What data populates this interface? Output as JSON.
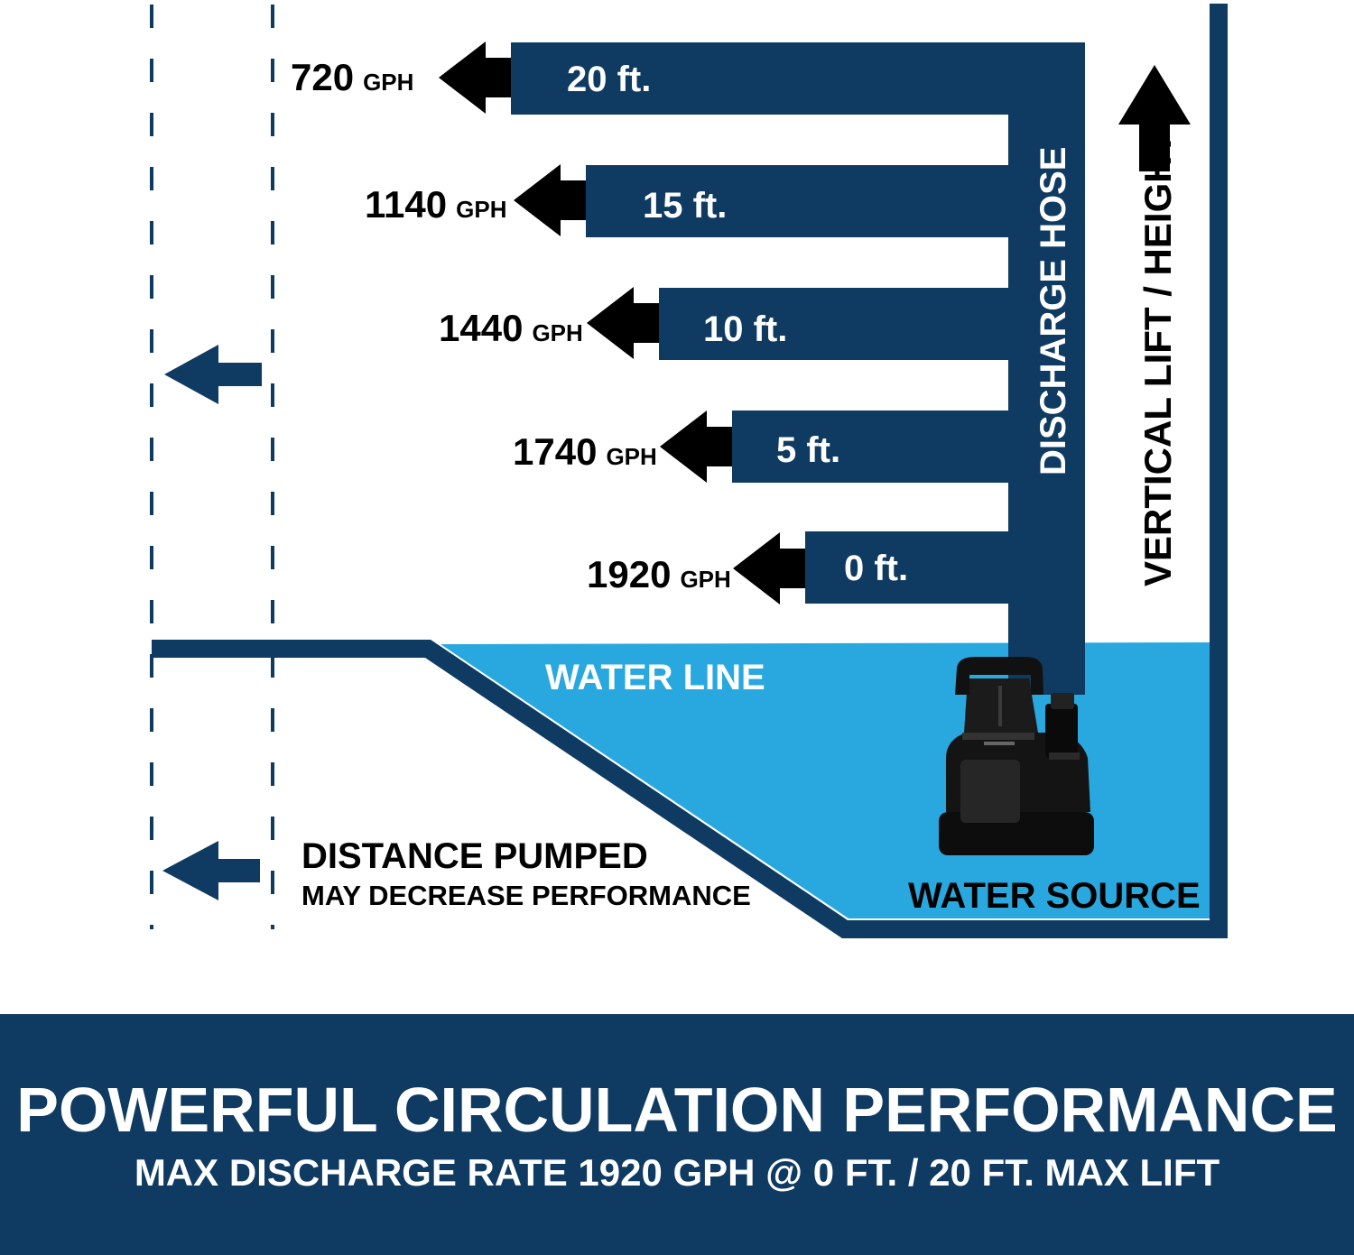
{
  "colors": {
    "navy": "#0f3a61",
    "water": "#29a8e0",
    "arrow": "#000000",
    "white": "#ffffff"
  },
  "lift_levels": [
    {
      "height": "20 ft.",
      "flow_value": "720",
      "flow_unit": "GPH"
    },
    {
      "height": "15 ft.",
      "flow_value": "1140",
      "flow_unit": "GPH"
    },
    {
      "height": "10 ft.",
      "flow_value": "1440",
      "flow_unit": "GPH"
    },
    {
      "height": "5 ft.",
      "flow_value": "1740",
      "flow_unit": "GPH"
    },
    {
      "height": "0 ft.",
      "flow_value": "1920",
      "flow_unit": "GPH"
    }
  ],
  "labels": {
    "discharge_hose": "DISCHARGE HOSE",
    "vertical_lift": "VERTICAL LIFT / HEIGHT",
    "water_line": "WATER LINE",
    "water_source": "WATER SOURCE",
    "distance_title": "DISTANCE PUMPED",
    "distance_sub": "MAY DECREASE PERFORMANCE"
  },
  "banner": {
    "title": "POWERFUL CIRCULATION PERFORMANCE",
    "subtitle": "MAX DISCHARGE RATE 1920 GPH @ 0 FT. / 20 FT. MAX LIFT"
  },
  "icons": {
    "pump": "submersible-pump-icon",
    "up_arrow": "arrow-up-icon",
    "left_arrow": "arrow-left-icon"
  }
}
